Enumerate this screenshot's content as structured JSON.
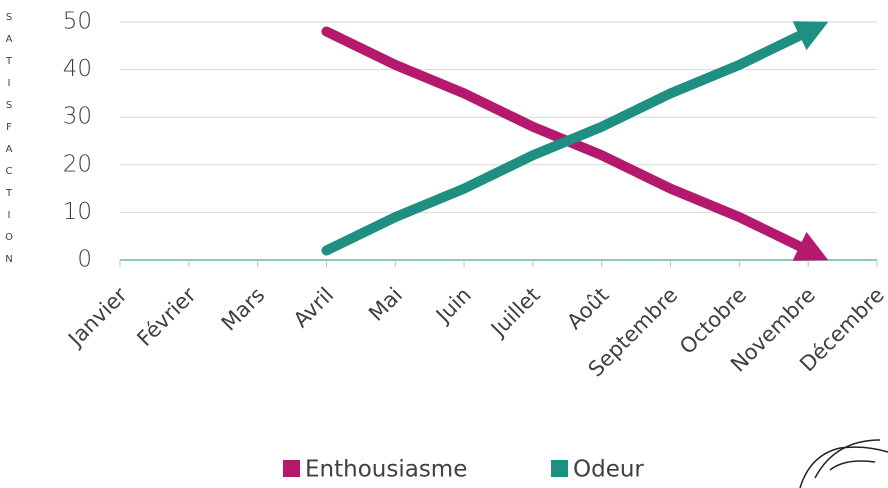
{
  "chart_data": {
    "type": "line",
    "y_label": "SATISFACTION",
    "categories": [
      "Janvier",
      "Février",
      "Mars",
      "Avril",
      "Mai",
      "Juin",
      "Juillet",
      "Août",
      "Septembre",
      "Octobre",
      "Novembre",
      "Décembre"
    ],
    "series": [
      {
        "name": "Enthousiasme",
        "color": "#b5196e",
        "values": [
          null,
          null,
          null,
          48,
          41,
          35,
          28,
          22,
          15,
          9,
          2,
          null
        ]
      },
      {
        "name": "Odeur",
        "color": "#1f8f82",
        "values": [
          null,
          null,
          null,
          2,
          9,
          15,
          22,
          28,
          35,
          41,
          48,
          null
        ]
      }
    ],
    "ylim": [
      0,
      50
    ],
    "yticks": [
      0,
      10,
      20,
      30,
      40,
      50
    ],
    "grid": true
  }
}
